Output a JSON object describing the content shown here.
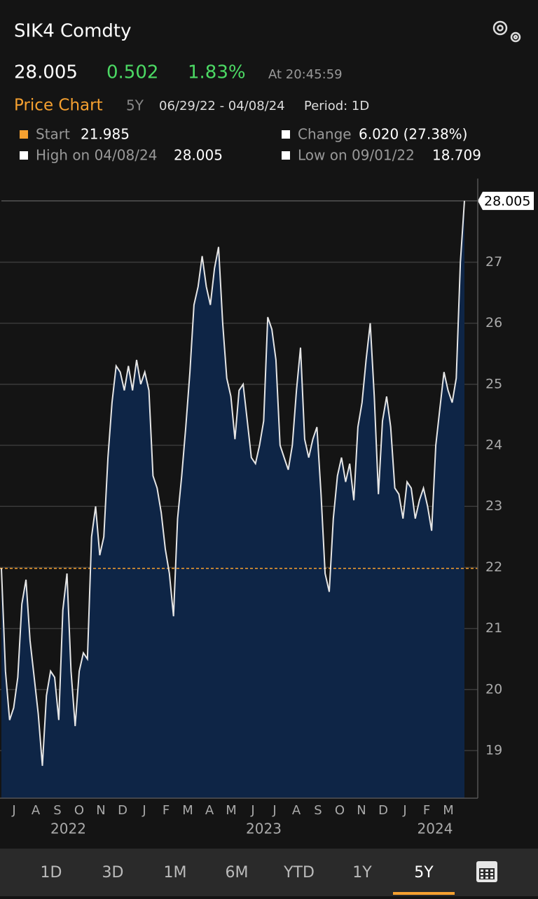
{
  "header": {
    "ticker": "SIK4 Comdty",
    "price": "28.005",
    "change": "0.502",
    "change_pct": "1.83%",
    "time": "At 20:45:59",
    "chart_title": "Price Chart",
    "range": "5Y",
    "dates": "06/29/22 - 04/08/24",
    "period": "Period: 1D"
  },
  "stats": {
    "start_label": "Start",
    "change_label": "Change",
    "change_value": "6.020 (27.38%)",
    "high_label": "High on 04/08/24",
    "high_value": "28.005",
    "low_label": "Low on 09/01/22",
    "low_value": "18.709"
  },
  "chart_data": {
    "type": "area",
    "start_value": 21.985,
    "series": [
      {
        "color": "#e6e6e6",
        "fill": "#0e2546",
        "values": [
          21.985,
          20.3,
          19.5,
          19.7,
          20.2,
          21.4,
          21.8,
          20.8,
          20.2,
          19.6,
          18.75,
          19.9,
          20.3,
          20.2,
          19.5,
          21.3,
          21.9,
          20.3,
          19.4,
          20.3,
          20.6,
          20.5,
          22.5,
          23.0,
          22.2,
          22.5,
          23.8,
          24.7,
          25.3,
          25.2,
          24.9,
          25.3,
          24.9,
          25.4,
          25.0,
          25.2,
          24.9,
          23.5,
          23.3,
          22.9,
          22.3,
          21.9,
          21.2,
          22.8,
          23.5,
          24.3,
          25.2,
          26.3,
          26.6,
          27.1,
          26.6,
          26.3,
          26.9,
          27.25,
          26.0,
          25.1,
          24.8,
          24.1,
          24.9,
          25.0,
          24.4,
          23.8,
          23.7,
          24.0,
          24.4,
          26.1,
          25.9,
          25.4,
          24.0,
          23.8,
          23.6,
          24.0,
          24.9,
          25.6,
          24.1,
          23.8,
          24.1,
          24.3,
          23.2,
          21.9,
          21.6,
          22.8,
          23.5,
          23.8,
          23.4,
          23.7,
          23.1,
          24.3,
          24.7,
          25.4,
          26.0,
          24.8,
          23.2,
          24.4,
          24.8,
          24.3,
          23.3,
          23.2,
          22.8,
          23.4,
          23.3,
          22.8,
          23.1,
          23.3,
          23.0,
          22.6,
          24.0,
          24.6,
          25.2,
          24.9,
          24.7,
          25.1,
          27.0,
          28.005
        ]
      }
    ],
    "ylim": [
      18.22,
      28.37
    ],
    "yticks": [
      19,
      20,
      21,
      22,
      23,
      24,
      25,
      26,
      27
    ],
    "grid": true,
    "x_axis": [
      {
        "year": "2022",
        "months": [
          "J",
          "A",
          "S",
          "O",
          "N",
          "D"
        ]
      },
      {
        "year": "2023",
        "months": [
          "J",
          "F",
          "M",
          "A",
          "M",
          "J",
          "J",
          "A",
          "S",
          "O",
          "N",
          "D"
        ]
      },
      {
        "year": "2024",
        "months": [
          "J",
          "F",
          "M"
        ]
      }
    ]
  },
  "tabs": [
    "1D",
    "3D",
    "1M",
    "6M",
    "YTD",
    "1Y",
    "5Y"
  ],
  "selected_tab": "5Y"
}
